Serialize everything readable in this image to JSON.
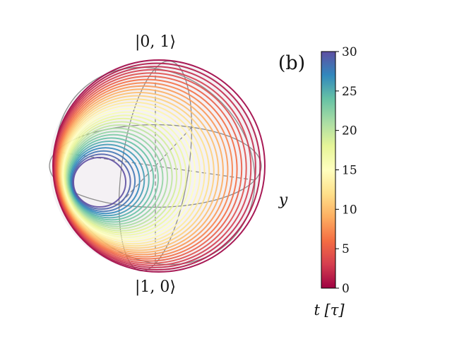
{
  "labels": {
    "top_state": "|0, 1⟩",
    "bottom_state": "|1, 0⟩",
    "side_axis": "y",
    "panel": "(b)"
  },
  "colorbar": {
    "label": "t [τ]",
    "min": 0,
    "max": 30,
    "ticks": [
      "0",
      "5",
      "10",
      "15",
      "20",
      "25",
      "30"
    ],
    "colormap": "Spectral",
    "colors": [
      "#9e0142",
      "#d53e4f",
      "#f46d43",
      "#fdae61",
      "#fee08b",
      "#ffffbf",
      "#e6f598",
      "#abdda4",
      "#66c2a5",
      "#3288bd",
      "#5e4fa2"
    ]
  },
  "sphere": {
    "fill": "#f4f1f4",
    "wireframe_color": "#8c8c8c",
    "trajectory_turns": 30
  }
}
